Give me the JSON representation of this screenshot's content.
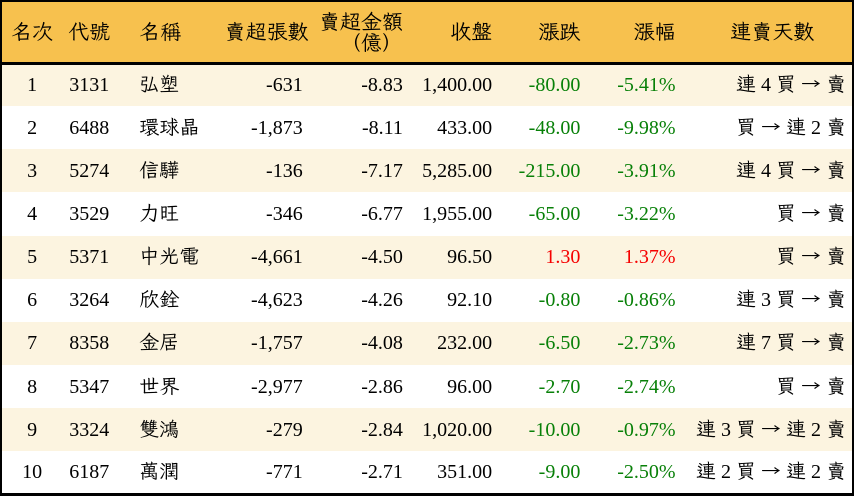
{
  "colors": {
    "header_bg": "#F7C14E",
    "row_odd_bg": "#FCF4E0",
    "row_even_bg": "#FFFFFF",
    "border": "#000000",
    "text": "#000000",
    "up_red": "#F60000",
    "down_green": "#088008"
  },
  "table": {
    "columns": [
      {
        "key": "rank",
        "label": "名次",
        "align": "center"
      },
      {
        "key": "code",
        "label": "代號",
        "align": "center"
      },
      {
        "key": "name",
        "label": "名稱",
        "align": "left"
      },
      {
        "key": "volume",
        "label": "賣超張數",
        "align": "right"
      },
      {
        "key": "amount",
        "label_lines": [
          "賣超金額",
          "（億）"
        ],
        "label": "賣超金額（億）",
        "align": "right"
      },
      {
        "key": "close",
        "label": "收盤",
        "align": "right"
      },
      {
        "key": "change",
        "label": "漲跌",
        "align": "right",
        "color_by_sign": true
      },
      {
        "key": "change_pct",
        "label": "漲幅",
        "align": "right",
        "color_by_sign": true
      },
      {
        "key": "streak",
        "label": "連賣天數",
        "align": "right",
        "header_align": "center"
      }
    ],
    "rows": [
      {
        "rank": "1",
        "code": "3131",
        "name": "弘塑",
        "volume": "-631",
        "amount": "-8.83",
        "close": "1,400.00",
        "change": "-80.00",
        "change_pct": "-5.41%",
        "streak": "連 4 買 → 賣"
      },
      {
        "rank": "2",
        "code": "6488",
        "name": "環球晶",
        "volume": "-1,873",
        "amount": "-8.11",
        "close": "433.00",
        "change": "-48.00",
        "change_pct": "-9.98%",
        "streak": "買 → 連 2 賣"
      },
      {
        "rank": "3",
        "code": "5274",
        "name": "信驊",
        "volume": "-136",
        "amount": "-7.17",
        "close": "5,285.00",
        "change": "-215.00",
        "change_pct": "-3.91%",
        "streak": "連 4 買 → 賣"
      },
      {
        "rank": "4",
        "code": "3529",
        "name": "力旺",
        "volume": "-346",
        "amount": "-6.77",
        "close": "1,955.00",
        "change": "-65.00",
        "change_pct": "-3.22%",
        "streak": "買 → 賣"
      },
      {
        "rank": "5",
        "code": "5371",
        "name": "中光電",
        "volume": "-4,661",
        "amount": "-4.50",
        "close": "96.50",
        "change": "1.30",
        "change_pct": "1.37%",
        "streak": "買 → 賣"
      },
      {
        "rank": "6",
        "code": "3264",
        "name": "欣銓",
        "volume": "-4,623",
        "amount": "-4.26",
        "close": "92.10",
        "change": "-0.80",
        "change_pct": "-0.86%",
        "streak": "連 3 買 → 賣"
      },
      {
        "rank": "7",
        "code": "8358",
        "name": "金居",
        "volume": "-1,757",
        "amount": "-4.08",
        "close": "232.00",
        "change": "-6.50",
        "change_pct": "-2.73%",
        "streak": "連 7 買 → 賣"
      },
      {
        "rank": "8",
        "code": "5347",
        "name": "世界",
        "volume": "-2,977",
        "amount": "-2.86",
        "close": "96.00",
        "change": "-2.70",
        "change_pct": "-2.74%",
        "streak": "買 → 賣"
      },
      {
        "rank": "9",
        "code": "3324",
        "name": "雙鴻",
        "volume": "-279",
        "amount": "-2.84",
        "close": "1,020.00",
        "change": "-10.00",
        "change_pct": "-0.97%",
        "streak": "連 3 買 → 連 2 賣"
      },
      {
        "rank": "10",
        "code": "6187",
        "name": "萬潤",
        "volume": "-771",
        "amount": "-2.71",
        "close": "351.00",
        "change": "-9.00",
        "change_pct": "-2.50%",
        "streak": "連 2 買 → 連 2 賣"
      }
    ]
  },
  "chart_data": {
    "type": "table",
    "title": "",
    "columns": [
      "名次",
      "代號",
      "名稱",
      "賣超張數",
      "賣超金額（億）",
      "收盤",
      "漲跌",
      "漲幅",
      "連賣天數"
    ],
    "rows": [
      [
        "1",
        "3131",
        "弘塑",
        "-631",
        "-8.83",
        "1,400.00",
        "-80.00",
        "-5.41%",
        "連 4 買 → 賣"
      ],
      [
        "2",
        "6488",
        "環球晶",
        "-1,873",
        "-8.11",
        "433.00",
        "-48.00",
        "-9.98%",
        "買 → 連 2 賣"
      ],
      [
        "3",
        "5274",
        "信驊",
        "-136",
        "-7.17",
        "5,285.00",
        "-215.00",
        "-3.91%",
        "連 4 買 → 賣"
      ],
      [
        "4",
        "3529",
        "力旺",
        "-346",
        "-6.77",
        "1,955.00",
        "-65.00",
        "-3.22%",
        "買 → 賣"
      ],
      [
        "5",
        "5371",
        "中光電",
        "-4,661",
        "-4.50",
        "96.50",
        "1.30",
        "1.37%",
        "買 → 賣"
      ],
      [
        "6",
        "3264",
        "欣銓",
        "-4,623",
        "-4.26",
        "92.10",
        "-0.80",
        "-0.86%",
        "連 3 買 → 賣"
      ],
      [
        "7",
        "8358",
        "金居",
        "-1,757",
        "-4.08",
        "232.00",
        "-6.50",
        "-2.73%",
        "連 7 買 → 賣"
      ],
      [
        "8",
        "5347",
        "世界",
        "-2,977",
        "-2.86",
        "96.00",
        "-2.70",
        "-2.74%",
        "買 → 賣"
      ],
      [
        "9",
        "3324",
        "雙鴻",
        "-279",
        "-2.84",
        "1,020.00",
        "-10.00",
        "-0.97%",
        "連 3 買 → 連 2 賣"
      ],
      [
        "10",
        "6187",
        "萬潤",
        "-771",
        "-2.71",
        "351.00",
        "-9.00",
        "-2.50%",
        "連 2 買 → 連 2 賣"
      ]
    ]
  }
}
